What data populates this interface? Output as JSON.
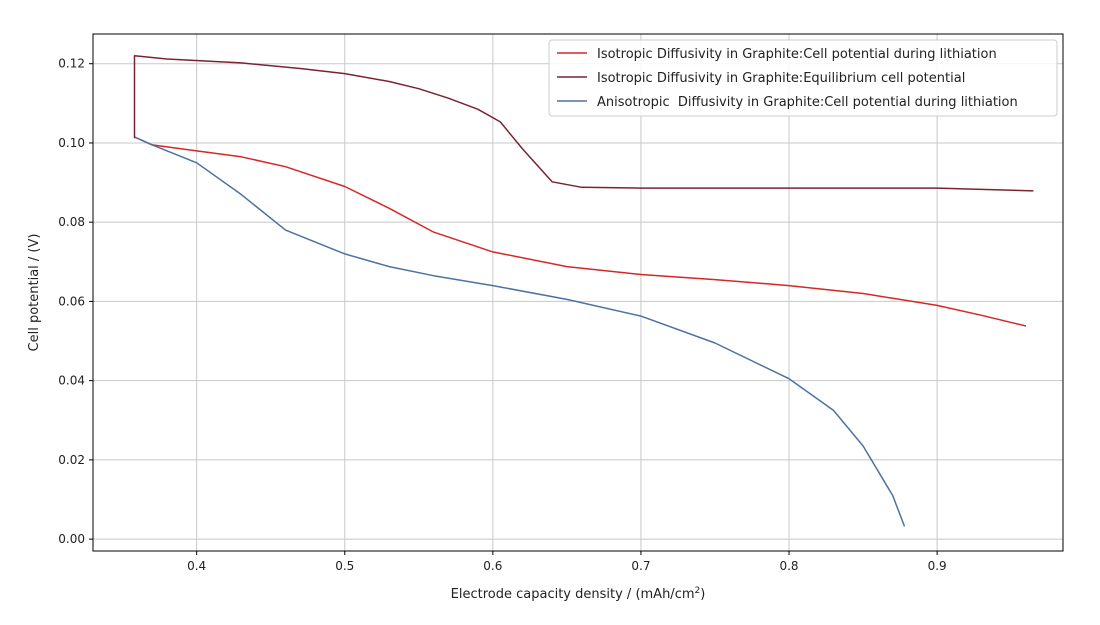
{
  "chart_data": {
    "type": "line",
    "title": "",
    "xlabel": "Electrode capacity density / (mAh/cm",
    "xlabel_sup": "2",
    "xlabel_end": ")",
    "ylabel": "Cell potential / (V)",
    "xlim": [
      0.33,
      0.985
    ],
    "ylim": [
      -0.003,
      0.1275
    ],
    "xticks": [
      0.4,
      0.5,
      0.6,
      0.7,
      0.8,
      0.9
    ],
    "xtick_labels": [
      "0.4",
      "0.5",
      "0.6",
      "0.7",
      "0.8",
      "0.9"
    ],
    "yticks": [
      0.0,
      0.02,
      0.04,
      0.06,
      0.08,
      0.1,
      0.12
    ],
    "ytick_labels": [
      "0.00",
      "0.02",
      "0.04",
      "0.06",
      "0.08",
      "0.10",
      "0.12"
    ],
    "grid": true,
    "legend_position": "top-right",
    "series": [
      {
        "name": "Isotropic Diffusivity in Graphite:Cell potential during lithiation",
        "color": "#d62728",
        "x": [
          0.358,
          0.37,
          0.4,
          0.43,
          0.46,
          0.5,
          0.53,
          0.56,
          0.6,
          0.65,
          0.7,
          0.75,
          0.8,
          0.85,
          0.9,
          0.93,
          0.96
        ],
        "y": [
          0.1015,
          0.0995,
          0.098,
          0.0965,
          0.094,
          0.089,
          0.0835,
          0.0775,
          0.0725,
          0.0688,
          0.0668,
          0.0655,
          0.064,
          0.062,
          0.059,
          0.0565,
          0.0538
        ]
      },
      {
        "name": "Isotropic Diffusivity in Graphite:Equilibrium cell potential",
        "color": "#7b2431",
        "x": [
          0.358,
          0.358,
          0.38,
          0.43,
          0.47,
          0.5,
          0.53,
          0.55,
          0.57,
          0.59,
          0.605,
          0.62,
          0.64,
          0.66,
          0.7,
          0.8,
          0.9,
          0.965
        ],
        "y": [
          0.1012,
          0.122,
          0.1212,
          0.1202,
          0.1188,
          0.1175,
          0.1155,
          0.1137,
          0.1113,
          0.1085,
          0.1053,
          0.0985,
          0.0902,
          0.0888,
          0.0886,
          0.0886,
          0.0886,
          0.0879
        ]
      },
      {
        "name": "Anisotropic  Diffusivity in Graphite:Cell potential during lithiation",
        "color": "#4c72a0",
        "x": [
          0.358,
          0.37,
          0.4,
          0.43,
          0.46,
          0.5,
          0.53,
          0.56,
          0.6,
          0.65,
          0.7,
          0.75,
          0.8,
          0.83,
          0.85,
          0.87,
          0.878
        ],
        "y": [
          0.1015,
          0.0995,
          0.095,
          0.087,
          0.078,
          0.072,
          0.0688,
          0.0665,
          0.064,
          0.0605,
          0.0563,
          0.0495,
          0.0405,
          0.0325,
          0.0235,
          0.011,
          0.0032
        ]
      }
    ]
  }
}
